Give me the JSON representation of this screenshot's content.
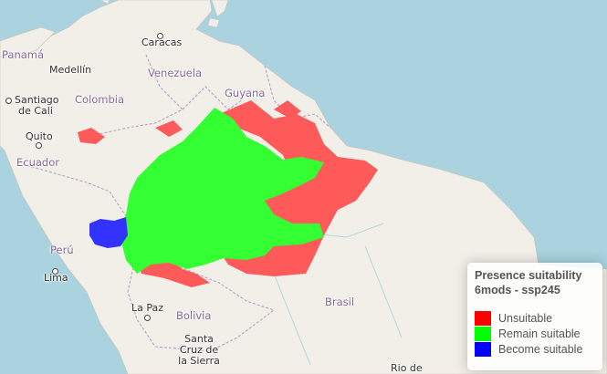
{
  "map": {
    "labels": {
      "panama": "Panamá",
      "caracas": "Caracas",
      "medellin": "Medellín",
      "venezuela": "Venezuela",
      "guyana": "Guyana",
      "colombia": "Colombia",
      "santiago_cali": "Santiago de Cali",
      "quito": "Quito",
      "ecuador": "Ecuador",
      "peru": "Perú",
      "lima": "Lima",
      "la_paz": "La Paz",
      "bolivia": "Bolivia",
      "santa_cruz": "Santa Cruz de la Sierra",
      "brasil": "Brasil",
      "rio": "Rio de"
    },
    "colors": {
      "ocean": "#aad3df",
      "land": "#f2efe9",
      "border": "#b89fc4",
      "unsuitable": "#ff5a5a",
      "remain": "#33ff33",
      "become": "#3333ff"
    }
  },
  "legend": {
    "title_line1": "Presence suitability",
    "title_line2": "6mods - ssp245",
    "items": [
      {
        "label": "Unsuitable",
        "color": "#ff0000"
      },
      {
        "label": "Remain suitable",
        "color": "#00ff00"
      },
      {
        "label": "Become suitable",
        "color": "#0000ff"
      }
    ]
  }
}
